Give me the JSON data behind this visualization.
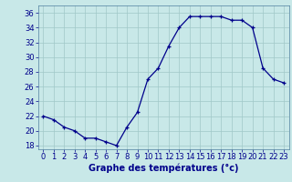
{
  "hours": [
    0,
    1,
    2,
    3,
    4,
    5,
    6,
    7,
    8,
    9,
    10,
    11,
    12,
    13,
    14,
    15,
    16,
    17,
    18,
    19,
    20,
    21,
    22,
    23
  ],
  "temps": [
    22,
    21.5,
    20.5,
    20,
    19,
    19,
    18.5,
    18,
    20.5,
    22.5,
    27,
    28.5,
    31.5,
    34,
    35.5,
    35.5,
    35.5,
    35.5,
    35,
    35,
    34,
    28.5,
    27,
    26.5
  ],
  "line_color": "#00008b",
  "marker": "+",
  "bg_color": "#c8e8e8",
  "grid_color": "#a0c8c8",
  "xlabel": "Graphe des températures (°c)",
  "xlabel_color": "#00008b",
  "ylabel_ticks": [
    18,
    20,
    22,
    24,
    26,
    28,
    30,
    32,
    34,
    36
  ],
  "ylim": [
    17.5,
    37
  ],
  "xlim": [
    -0.5,
    23.5
  ],
  "tick_color": "#00008b",
  "axis_label_fontsize": 7,
  "tick_fontsize": 6
}
